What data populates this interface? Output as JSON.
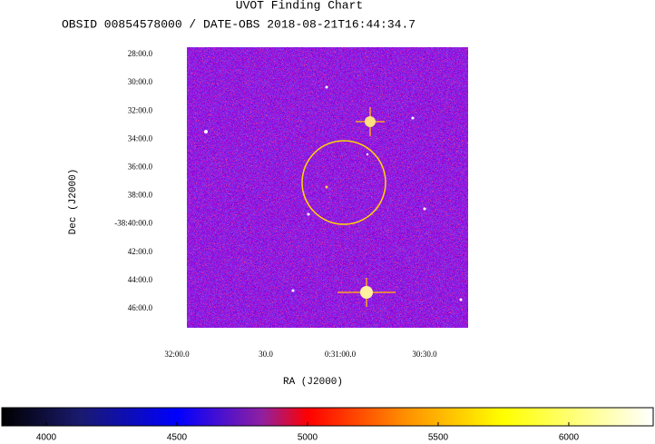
{
  "header": {
    "title": "UVOT Finding Chart",
    "subtitle": "OBSID 00854578000 / DATE-OBS 2018-08-21T16:44:34.7"
  },
  "y_axis": {
    "label": "Dec (J2000)",
    "ticks": [
      "28:00.0",
      "30:00.0",
      "32:00.0",
      "34:00.0",
      "36:00.0",
      "38:00.0",
      "-38:40:00.0",
      "42:00.0",
      "44:00.0",
      "46:00.0"
    ]
  },
  "x_axis": {
    "label": "RA (J2000)",
    "ticks": [
      "32:00.0",
      "30.0",
      "0:31:00.0",
      "30:30.0"
    ]
  },
  "colorbar": {
    "range": [
      3830,
      6323
    ],
    "ticks": [
      4000,
      4500,
      5000,
      5500,
      6000
    ]
  }
}
